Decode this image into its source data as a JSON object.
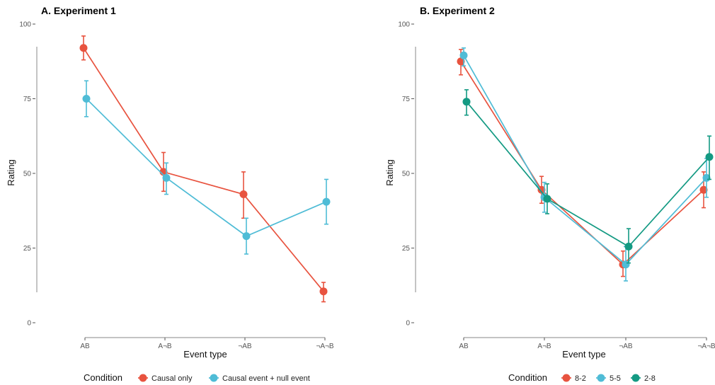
{
  "chart_data": [
    {
      "type": "line",
      "title": "A. Experiment 1",
      "xlabel": "Event type",
      "ylabel": "Rating",
      "categories": [
        "AB",
        "A¬B",
        "¬AB",
        "¬A¬B"
      ],
      "yticks": [
        "0",
        "25",
        "50",
        "75",
        "100"
      ],
      "ylim": [
        0,
        100
      ],
      "grid": false,
      "legend": {
        "title": "Condition",
        "position": "bottom",
        "entries": [
          "Causal only",
          "Causal event + null event"
        ]
      },
      "series": [
        {
          "name": "Causal only",
          "color": "#E8533F",
          "values": [
            92,
            50.5,
            43,
            10.5
          ],
          "err_low": [
            88,
            44,
            35,
            7
          ],
          "err_high": [
            96,
            57,
            50.5,
            13.5
          ]
        },
        {
          "name": "Causal event + null event",
          "color": "#4FBCD6",
          "values": [
            75,
            48.5,
            29,
            40.5
          ],
          "err_low": [
            69,
            43,
            23,
            33
          ],
          "err_high": [
            81,
            53.5,
            35,
            48
          ]
        }
      ]
    },
    {
      "type": "line",
      "title": "B. Experiment 2",
      "xlabel": "Event type",
      "ylabel": "Rating",
      "categories": [
        "AB",
        "A¬B",
        "¬AB",
        "¬A¬B"
      ],
      "yticks": [
        "0",
        "25",
        "50",
        "75",
        "100"
      ],
      "ylim": [
        0,
        100
      ],
      "grid": false,
      "legend": {
        "title": "Condition",
        "position": "bottom",
        "entries": [
          "8-2",
          "5-5",
          "2-8"
        ]
      },
      "series": [
        {
          "name": "8-2",
          "color": "#E8533F",
          "values": [
            87.5,
            44.5,
            19.5,
            44.5
          ],
          "err_low": [
            83,
            40,
            15.5,
            38.5
          ],
          "err_high": [
            91.5,
            49,
            24,
            50.5
          ]
        },
        {
          "name": "5-5",
          "color": "#4FBCD6",
          "values": [
            89.5,
            42,
            19.5,
            48.5
          ],
          "err_low": [
            86,
            37,
            14,
            42
          ],
          "err_high": [
            92,
            47,
            25.5,
            55
          ]
        },
        {
          "name": "2-8",
          "color": "#149A83",
          "values": [
            74,
            41.5,
            25.5,
            55.5
          ],
          "err_low": [
            69.5,
            36.5,
            20,
            48
          ],
          "err_high": [
            78,
            46.5,
            31.5,
            62.5
          ]
        }
      ]
    }
  ]
}
